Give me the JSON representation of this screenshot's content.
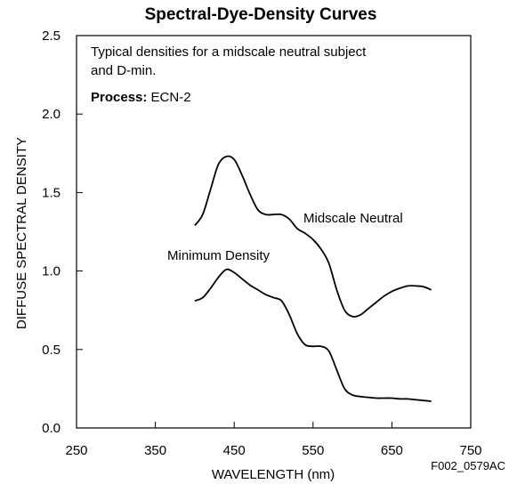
{
  "chart_data": {
    "type": "line",
    "title": "Spectral-Dye-Density Curves",
    "xlabel": "WAVELENGTH (nm)",
    "ylabel": "DIFFUSE SPECTRAL DENSITY",
    "xlim": [
      250,
      750
    ],
    "ylim": [
      0.0,
      2.5
    ],
    "x_ticks": [
      "250",
      "350",
      "450",
      "550",
      "650",
      "750"
    ],
    "y_ticks": [
      "0.0",
      "0.5",
      "1.0",
      "1.5",
      "2.0",
      "2.5"
    ],
    "grid": false,
    "annotation": {
      "line1": "Typical densities for a midscale neutral subject",
      "line2": "and D-min.",
      "process_label": "Process:",
      "process_value": "ECN-2"
    },
    "figure_code": "F002_0579AC",
    "series": [
      {
        "name": "Midscale Neutral",
        "x": [
          400,
          410,
          420,
          430,
          440,
          450,
          460,
          470,
          480,
          490,
          500,
          510,
          520,
          530,
          540,
          550,
          560,
          570,
          580,
          590,
          600,
          610,
          620,
          630,
          640,
          650,
          660,
          670,
          680,
          690,
          700
        ],
        "y": [
          1.29,
          1.36,
          1.52,
          1.68,
          1.73,
          1.71,
          1.61,
          1.49,
          1.39,
          1.36,
          1.36,
          1.36,
          1.33,
          1.27,
          1.24,
          1.2,
          1.14,
          1.05,
          0.88,
          0.75,
          0.71,
          0.72,
          0.76,
          0.8,
          0.84,
          0.87,
          0.89,
          0.905,
          0.905,
          0.9,
          0.88
        ]
      },
      {
        "name": "Minimum Density",
        "x": [
          400,
          410,
          420,
          430,
          440,
          450,
          460,
          470,
          480,
          490,
          500,
          510,
          520,
          530,
          540,
          550,
          560,
          570,
          580,
          590,
          600,
          610,
          620,
          630,
          640,
          650,
          660,
          670,
          680,
          690,
          700
        ],
        "y": [
          0.81,
          0.83,
          0.89,
          0.96,
          1.01,
          0.99,
          0.95,
          0.91,
          0.88,
          0.85,
          0.83,
          0.81,
          0.72,
          0.6,
          0.53,
          0.52,
          0.52,
          0.49,
          0.37,
          0.25,
          0.21,
          0.2,
          0.195,
          0.19,
          0.19,
          0.19,
          0.185,
          0.185,
          0.18,
          0.175,
          0.17
        ]
      }
    ]
  }
}
